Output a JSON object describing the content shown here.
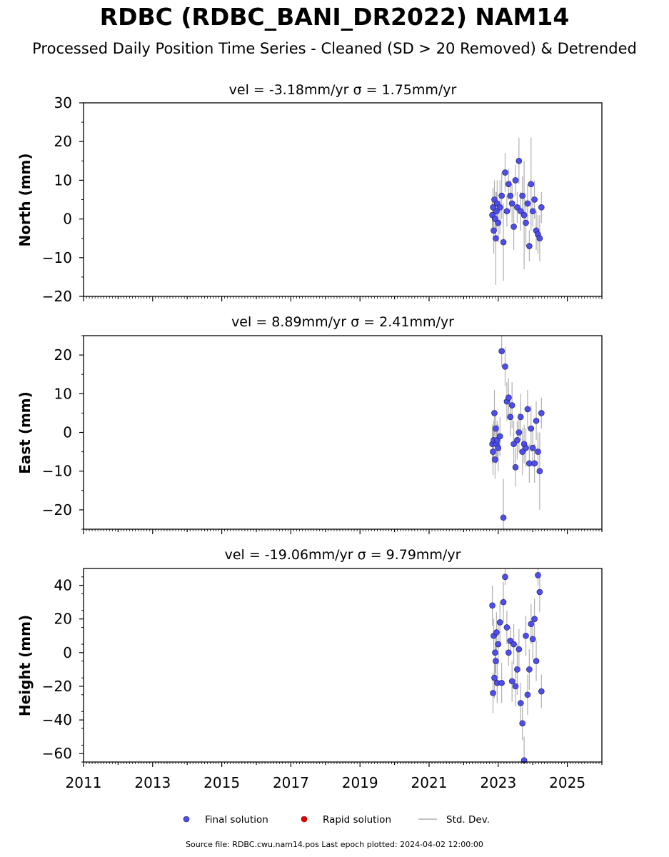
{
  "figure": {
    "title": "RDBC (RDBC_BANI_DR2022) NAM14",
    "subtitle": "Processed Daily Position Time Series - Cleaned (SD > 20 Removed) & Detrended",
    "source_note": "Source file: RDBC.cwu.nam14.pos  Last epoch plotted: 2024-04-02 12:00:00"
  },
  "legend": {
    "final": "Final solution",
    "rapid": "Rapid solution",
    "std": "Std. Dev."
  },
  "colors": {
    "final_fill": "#4d4df2",
    "final_edge": "#1a1a4d",
    "rapid": "#e00000",
    "errorbar": "#b0b0b0"
  },
  "chart_data": [
    {
      "type": "scatter",
      "panel": "north",
      "title": "vel = -3.18mm/yr   σ = 1.75mm/yr",
      "xlabel": "",
      "ylabel": "North (mm)",
      "xlim": [
        2011,
        2026
      ],
      "ylim": [
        -20,
        30
      ],
      "yticks": [
        -20,
        -10,
        0,
        10,
        20,
        30
      ],
      "ytick_labels": [
        "−20",
        "−10",
        "0",
        "10",
        "20",
        "30"
      ],
      "x": [
        2022.83,
        2022.85,
        2022.87,
        2022.89,
        2022.91,
        2022.93,
        2022.95,
        2022.97,
        2023.0,
        2023.05,
        2023.1,
        2023.15,
        2023.2,
        2023.25,
        2023.3,
        2023.35,
        2023.4,
        2023.45,
        2023.5,
        2023.55,
        2023.6,
        2023.65,
        2023.7,
        2023.75,
        2023.8,
        2023.85,
        2023.9,
        2023.95,
        2024.0,
        2024.05,
        2024.1,
        2024.15,
        2024.2,
        2024.25
      ],
      "y": [
        1,
        3,
        -3,
        5,
        0,
        -5,
        2,
        4,
        -1,
        3,
        6,
        -6,
        12,
        2,
        9,
        6,
        4,
        -2,
        10,
        3,
        15,
        2,
        6,
        1,
        -1,
        4,
        -7,
        9,
        2,
        5,
        -3,
        -4,
        -5,
        3
      ],
      "err": [
        4,
        5,
        6,
        5,
        4,
        12,
        5,
        6,
        5,
        7,
        6,
        10,
        5,
        4,
        4,
        4,
        5,
        6,
        4,
        4,
        6,
        5,
        5,
        14,
        6,
        5,
        4,
        12,
        4,
        5,
        5,
        5,
        6,
        4
      ]
    },
    {
      "type": "scatter",
      "panel": "east",
      "title": "vel = 8.89mm/yr   σ = 2.41mm/yr",
      "xlabel": "",
      "ylabel": "East (mm)",
      "xlim": [
        2011,
        2026
      ],
      "ylim": [
        -25,
        25
      ],
      "yticks": [
        -20,
        -10,
        0,
        10,
        20
      ],
      "ytick_labels": [
        "−20",
        "−10",
        "0",
        "10",
        "20"
      ],
      "x": [
        2022.83,
        2022.85,
        2022.87,
        2022.89,
        2022.91,
        2022.93,
        2022.95,
        2022.97,
        2023.0,
        2023.05,
        2023.1,
        2023.15,
        2023.2,
        2023.25,
        2023.3,
        2023.35,
        2023.4,
        2023.45,
        2023.5,
        2023.55,
        2023.6,
        2023.65,
        2023.7,
        2023.75,
        2023.8,
        2023.85,
        2023.9,
        2023.95,
        2024.0,
        2024.05,
        2024.1,
        2024.15,
        2024.2,
        2024.25
      ],
      "y": [
        -3,
        -5,
        -2,
        5,
        -7,
        1,
        -3,
        -2,
        -4,
        -1,
        21,
        -22,
        17,
        8,
        9,
        4,
        7,
        -3,
        -9,
        -2,
        0,
        4,
        -5,
        -3,
        -4,
        6,
        -8,
        1,
        -4,
        -8,
        3,
        -5,
        -10,
        5
      ],
      "err": [
        5,
        6,
        5,
        6,
        5,
        4,
        5,
        5,
        6,
        5,
        4,
        10,
        5,
        5,
        5,
        5,
        6,
        6,
        5,
        5,
        5,
        6,
        6,
        5,
        5,
        5,
        5,
        6,
        5,
        5,
        5,
        5,
        10,
        4
      ]
    },
    {
      "type": "scatter",
      "panel": "height",
      "title": "vel = -19.06mm/yr   σ = 9.79mm/yr",
      "xlabel": "",
      "ylabel": "Height (mm)",
      "xlim": [
        2011,
        2026
      ],
      "ylim": [
        -65,
        50
      ],
      "yticks": [
        -60,
        -40,
        -20,
        0,
        20,
        40
      ],
      "ytick_labels": [
        "−60",
        "−40",
        "−20",
        "0",
        "20",
        "40"
      ],
      "xticks": [
        2011,
        2013,
        2015,
        2017,
        2019,
        2021,
        2023,
        2025
      ],
      "xtick_labels": [
        "2011",
        "2013",
        "2015",
        "2017",
        "2019",
        "2021",
        "2023",
        "2025"
      ],
      "x": [
        2022.83,
        2022.85,
        2022.87,
        2022.89,
        2022.91,
        2022.93,
        2022.95,
        2022.97,
        2023.0,
        2023.05,
        2023.1,
        2023.15,
        2023.2,
        2023.25,
        2023.3,
        2023.35,
        2023.4,
        2023.45,
        2023.5,
        2023.55,
        2023.6,
        2023.65,
        2023.7,
        2023.75,
        2023.8,
        2023.85,
        2023.9,
        2023.95,
        2024.0,
        2024.05,
        2024.1,
        2024.15,
        2024.2,
        2024.25
      ],
      "y": [
        28,
        -24,
        10,
        -15,
        0,
        -5,
        12,
        -18,
        5,
        18,
        -18,
        30,
        45,
        15,
        0,
        7,
        -17,
        5,
        -20,
        -10,
        2,
        -30,
        -42,
        -64,
        10,
        -25,
        -10,
        17,
        8,
        20,
        -5,
        46,
        36,
        -23
      ],
      "err": [
        12,
        12,
        10,
        12,
        12,
        10,
        12,
        12,
        12,
        12,
        12,
        12,
        5,
        10,
        8,
        8,
        12,
        12,
        12,
        15,
        12,
        12,
        10,
        14,
        12,
        12,
        12,
        12,
        12,
        12,
        12,
        6,
        12,
        10
      ]
    }
  ]
}
